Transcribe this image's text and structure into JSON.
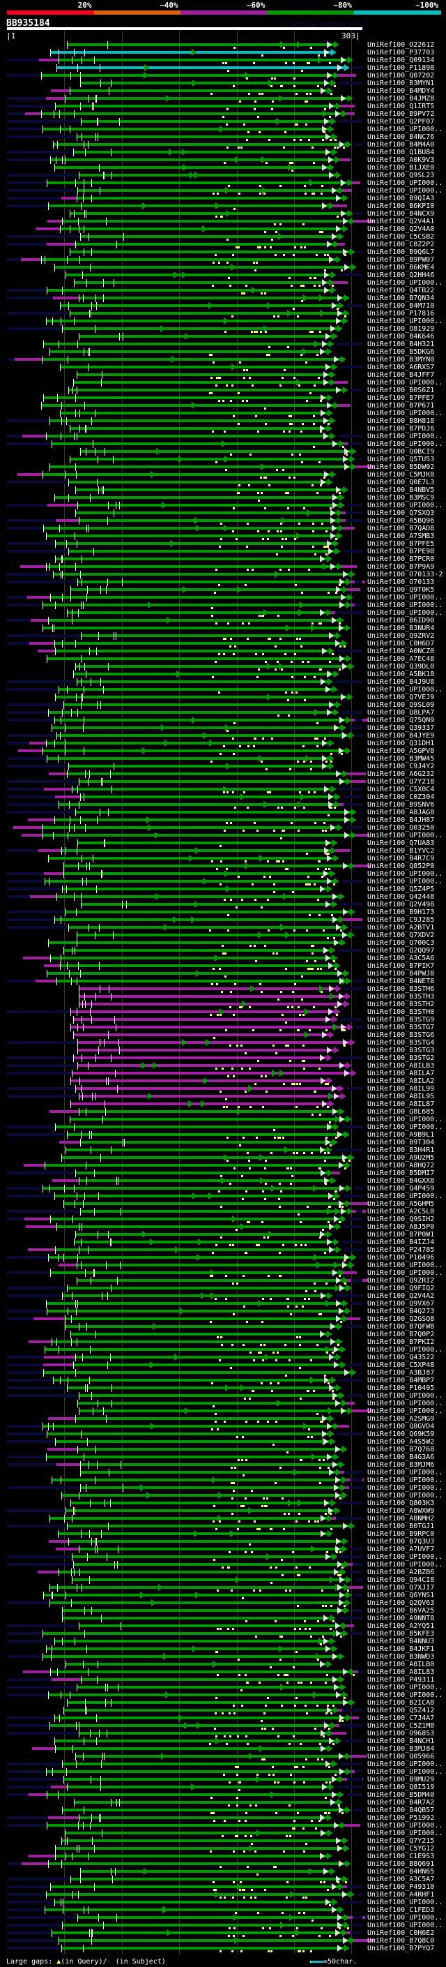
{
  "identity_legend": [
    {
      "label": "20%",
      "color": "#ff0020"
    },
    {
      "label": "~40%",
      "color": "#e06000"
    },
    {
      "label": "~60%",
      "color": "#a020a0"
    },
    {
      "label": "~80%",
      "color": "#009900"
    },
    {
      "label": "~100%",
      "color": "#00c0c0"
    }
  ],
  "query": {
    "title": "BB935184",
    "tool": "AlignView.pm Beta rel.7",
    "start": "|1",
    "end": "303|",
    "length": 303
  },
  "colors": {
    "g": "#009900",
    "c": "#00c0c0",
    "m": "#a020a0",
    "navy": "#0a0a38",
    "gap": "#ffff70"
  },
  "footer": {
    "prefix": "Large gaps: ",
    "query_mark": "▲",
    "query_text": "(in Query)/",
    "subject_mark": "-",
    "subject_text": " (in Subject)",
    "scale_text": "=50char."
  },
  "hits": [
    {
      "name": "UniRef100_O22612",
      "c": "g"
    },
    {
      "name": "UniRef100_P37703",
      "c": "c"
    },
    {
      "name": "UniRef100_Q09134",
      "c": "g"
    },
    {
      "name": "UniRef100_P11898",
      "c": "c"
    },
    {
      "name": "UniRef100_Q07202",
      "c": "g"
    },
    {
      "name": "UniRef100_B3MYN1",
      "c": "g"
    },
    {
      "name": "UniRef100_B4MDY4",
      "c": "g"
    },
    {
      "name": "UniRef100_B4JMZ8",
      "c": "g"
    },
    {
      "name": "UniRef100_Q1IRT5",
      "c": "g"
    },
    {
      "name": "UniRef100_B9PV72",
      "c": "g"
    },
    {
      "name": "UniRef100_Q2PF07",
      "c": "g"
    },
    {
      "name": "UniRef100_UPI000..",
      "c": "g"
    },
    {
      "name": "UniRef100_B4NC76",
      "c": "g"
    },
    {
      "name": "UniRef100_B4M4A0",
      "c": "g"
    },
    {
      "name": "UniRef100_Q1BU84",
      "c": "g"
    },
    {
      "name": "UniRef100_A0K9V3",
      "c": "g"
    },
    {
      "name": "UniRef100_B1JXE0",
      "c": "g"
    },
    {
      "name": "UniRef100_Q9SL23",
      "c": "g"
    },
    {
      "name": "UniRef100_UPI000..",
      "c": "g"
    },
    {
      "name": "UniRef100_UPI000..",
      "c": "g"
    },
    {
      "name": "UniRef100_B9QIA3",
      "c": "g"
    },
    {
      "name": "UniRef100_B6KPI0",
      "c": "g"
    },
    {
      "name": "UniRef100_B4NCX9",
      "c": "g"
    },
    {
      "name": "UniRef100_Q2V4A1",
      "c": "g"
    },
    {
      "name": "UniRef100_Q2V4A0",
      "c": "g"
    },
    {
      "name": "UniRef100_C5CSB2",
      "c": "g"
    },
    {
      "name": "UniRef100_C0Z2P2",
      "c": "g"
    },
    {
      "name": "UniRef100_B9Q6L7",
      "c": "g"
    },
    {
      "name": "UniRef100_B9PW07",
      "c": "g"
    },
    {
      "name": "UniRef100_B6KME4",
      "c": "g"
    },
    {
      "name": "UniRef100_Q2HH46",
      "c": "g"
    },
    {
      "name": "UniRef100_UPI000..",
      "c": "g"
    },
    {
      "name": "UniRef100_Q4TB22",
      "c": "g"
    },
    {
      "name": "UniRef100_B7QN34",
      "c": "g"
    },
    {
      "name": "UniRef100_B4M7I0",
      "c": "g"
    },
    {
      "name": "UniRef100_P17816",
      "c": "g"
    },
    {
      "name": "UniRef100_UPI000..",
      "c": "g"
    },
    {
      "name": "UniRef100_O81929",
      "c": "g"
    },
    {
      "name": "UniRef100_B4K646",
      "c": "g"
    },
    {
      "name": "UniRef100_B4H321",
      "c": "g"
    },
    {
      "name": "UniRef100_B5DKG6",
      "c": "g"
    },
    {
      "name": "UniRef100_B3MYN0",
      "c": "g"
    },
    {
      "name": "UniRef100_A6RXS7",
      "c": "g"
    },
    {
      "name": "UniRef100_B4JFF7",
      "c": "g"
    },
    {
      "name": "UniRef100_UPI000..",
      "c": "g"
    },
    {
      "name": "UniRef100_B0S6Z1",
      "c": "g"
    },
    {
      "name": "UniRef100_B7PFE7",
      "c": "g"
    },
    {
      "name": "UniRef100_B7P671",
      "c": "g"
    },
    {
      "name": "UniRef100_UPI000..",
      "c": "g"
    },
    {
      "name": "UniRef100_B8H818",
      "c": "g"
    },
    {
      "name": "UniRef100_B7PDJ6",
      "c": "g"
    },
    {
      "name": "UniRef100_UPI000..",
      "c": "g"
    },
    {
      "name": "UniRef100_UPI000..",
      "c": "g"
    },
    {
      "name": "UniRef100_Q0BCI9",
      "c": "g"
    },
    {
      "name": "UniRef100_Q5TU53",
      "c": "g"
    },
    {
      "name": "UniRef100_B5DW02",
      "c": "g"
    },
    {
      "name": "UniRef100_C5MJK0",
      "c": "g"
    },
    {
      "name": "UniRef100_Q0E7L3",
      "c": "g"
    },
    {
      "name": "UniRef100_B4NBV5",
      "c": "g"
    },
    {
      "name": "UniRef100_B3MSC9",
      "c": "g"
    },
    {
      "name": "UniRef100_UPI000..",
      "c": "g"
    },
    {
      "name": "UniRef100_Q7SXQ3",
      "c": "g"
    },
    {
      "name": "UniRef100_A5BQ96",
      "c": "g"
    },
    {
      "name": "UniRef100_B7QAD8",
      "c": "g"
    },
    {
      "name": "UniRef100_A7SMB3",
      "c": "g"
    },
    {
      "name": "UniRef100_B7PFE5",
      "c": "g"
    },
    {
      "name": "UniRef100_B7PE98",
      "c": "g"
    },
    {
      "name": "UniRef100_B7PCR0",
      "c": "g"
    },
    {
      "name": "UniRef100_B7P9A9",
      "c": "g"
    },
    {
      "name": "UniRef100_O70133-2",
      "c": "g"
    },
    {
      "name": "UniRef100_O70133",
      "c": "g"
    },
    {
      "name": "UniRef100_Q9T0K5",
      "c": "g"
    },
    {
      "name": "UniRef100_UPI000..",
      "c": "g"
    },
    {
      "name": "UniRef100_UPI000..",
      "c": "g"
    },
    {
      "name": "UniRef100_UPI000..",
      "c": "g"
    },
    {
      "name": "UniRef100_B6ID90",
      "c": "g"
    },
    {
      "name": "UniRef100_B3NUR4",
      "c": "g"
    },
    {
      "name": "UniRef100_Q9ZRV2",
      "c": "g"
    },
    {
      "name": "UniRef100_C0H6D7",
      "c": "g"
    },
    {
      "name": "UniRef100_A0NCZ0",
      "c": "g"
    },
    {
      "name": "UniRef100_A7EC48",
      "c": "g"
    },
    {
      "name": "UniRef100_Q39DL0",
      "c": "g"
    },
    {
      "name": "UniRef100_A5BK18",
      "c": "g"
    },
    {
      "name": "UniRef100_B4J9U8",
      "c": "g"
    },
    {
      "name": "UniRef100_UPI000..",
      "c": "g"
    },
    {
      "name": "UniRef100_Q7VEJ9",
      "c": "g"
    },
    {
      "name": "UniRef100_Q9SL09",
      "c": "g"
    },
    {
      "name": "UniRef100_Q8LPA7",
      "c": "g"
    },
    {
      "name": "UniRef100_Q75QN9",
      "c": "g"
    },
    {
      "name": "UniRef100_Q39337",
      "c": "g"
    },
    {
      "name": "UniRef100_B4JYE9",
      "c": "g"
    },
    {
      "name": "UniRef100_Q31DH1",
      "c": "g"
    },
    {
      "name": "UniRef100_A5GPV8",
      "c": "g"
    },
    {
      "name": "UniRef100_B3MW45",
      "c": "g"
    },
    {
      "name": "UniRef100_C9J4Y2",
      "c": "g"
    },
    {
      "name": "UniRef100_A6G232",
      "c": "g"
    },
    {
      "name": "UniRef100_Q7Y218",
      "c": "g"
    },
    {
      "name": "UniRef100_C5X0C4",
      "c": "g"
    },
    {
      "name": "UniRef100_C0Z304",
      "c": "g"
    },
    {
      "name": "UniRef100_B9SNV6",
      "c": "g"
    },
    {
      "name": "UniRef100_A8JAG8",
      "c": "g"
    },
    {
      "name": "UniRef100_B4JH87",
      "c": "g"
    },
    {
      "name": "UniRef100_Q03250",
      "c": "g"
    },
    {
      "name": "UniRef100_UPI000..",
      "c": "g"
    },
    {
      "name": "UniRef100_Q7UA83",
      "c": "g"
    },
    {
      "name": "UniRef100_B1YVC2",
      "c": "g"
    },
    {
      "name": "UniRef100_B4R7C9",
      "c": "g"
    },
    {
      "name": "UniRef100_Q852P0",
      "c": "g"
    },
    {
      "name": "UniRef100_UPI000..",
      "c": "g"
    },
    {
      "name": "UniRef100_UPI000..",
      "c": "g"
    },
    {
      "name": "UniRef100_Q5Z4P5",
      "c": "g"
    },
    {
      "name": "UniRef100_Q42448",
      "c": "g"
    },
    {
      "name": "UniRef100_Q2V498",
      "c": "g"
    },
    {
      "name": "UniRef100_B9H173",
      "c": "g"
    },
    {
      "name": "UniRef100_C9J285",
      "c": "g"
    },
    {
      "name": "UniRef100_A2BTV1",
      "c": "g"
    },
    {
      "name": "UniRef100_Q7XDV2",
      "c": "g"
    },
    {
      "name": "UniRef100_Q700C3",
      "c": "g"
    },
    {
      "name": "UniRef100_Q2QQ97",
      "c": "g"
    },
    {
      "name": "UniRef100_A3C5A6",
      "c": "g"
    },
    {
      "name": "UniRef100_B7PIK7",
      "c": "g"
    },
    {
      "name": "UniRef100_B4PWJ8",
      "c": "g"
    },
    {
      "name": "UniRef100_B4NET8",
      "c": "g"
    },
    {
      "name": "UniRef100_B3STH6",
      "c": "m"
    },
    {
      "name": "UniRef100_B3STH3",
      "c": "m"
    },
    {
      "name": "UniRef100_B3STH2",
      "c": "m"
    },
    {
      "name": "UniRef100_B3STH0",
      "c": "m"
    },
    {
      "name": "UniRef100_B3STG9",
      "c": "m"
    },
    {
      "name": "UniRef100_B3STG7",
      "c": "m"
    },
    {
      "name": "UniRef100_B3STG6",
      "c": "m"
    },
    {
      "name": "UniRef100_B3STG4",
      "c": "m"
    },
    {
      "name": "UniRef100_B3STG3",
      "c": "m"
    },
    {
      "name": "UniRef100_B3STG2",
      "c": "m"
    },
    {
      "name": "UniRef100_A8ILB3",
      "c": "m"
    },
    {
      "name": "UniRef100_A8ILA7",
      "c": "m"
    },
    {
      "name": "UniRef100_A8ILA2",
      "c": "m"
    },
    {
      "name": "UniRef100_A8IL99",
      "c": "m"
    },
    {
      "name": "UniRef100_A8IL95",
      "c": "m"
    },
    {
      "name": "UniRef100_A8IL87",
      "c": "m"
    },
    {
      "name": "UniRef100_Q8L685",
      "c": "g"
    },
    {
      "name": "UniRef100_UPI000..",
      "c": "g"
    },
    {
      "name": "UniRef100_UPI000..",
      "c": "g"
    },
    {
      "name": "UniRef100_A9B9L1",
      "c": "g"
    },
    {
      "name": "UniRef100_B9T304",
      "c": "g"
    },
    {
      "name": "UniRef100_B3H4R1",
      "c": "g"
    },
    {
      "name": "UniRef100_A9U2M5",
      "c": "g"
    },
    {
      "name": "UniRef100_A8HQ72",
      "c": "g"
    },
    {
      "name": "UniRef100_B5DMI7",
      "c": "g"
    },
    {
      "name": "UniRef100_B4GXX8",
      "c": "g"
    },
    {
      "name": "UniRef100_Q4P459",
      "c": "g"
    },
    {
      "name": "UniRef100_UPI000..",
      "c": "g"
    },
    {
      "name": "UniRef100_A5GHM5",
      "c": "g"
    },
    {
      "name": "UniRef100_A2C5L0",
      "c": "g"
    },
    {
      "name": "UniRef100_Q9SIH2",
      "c": "g"
    },
    {
      "name": "UniRef100_A8J5P0",
      "c": "g"
    },
    {
      "name": "UniRef100_B7P0W1",
      "c": "g"
    },
    {
      "name": "UniRef100_B4IZJ4",
      "c": "g"
    },
    {
      "name": "UniRef100_P24785",
      "c": "g"
    },
    {
      "name": "UniRef100_P10496",
      "c": "g"
    },
    {
      "name": "UniRef100_UPI000..",
      "c": "g"
    },
    {
      "name": "UniRef100_UPI000..",
      "c": "g"
    },
    {
      "name": "UniRef100_Q9ZRI2",
      "c": "g"
    },
    {
      "name": "UniRef100_Q9FIQ2",
      "c": "g"
    },
    {
      "name": "UniRef100_Q2V4A2",
      "c": "g"
    },
    {
      "name": "UniRef100_Q9VX67",
      "c": "g"
    },
    {
      "name": "UniRef100_B4Q273",
      "c": "g"
    },
    {
      "name": "UniRef100_Q2GSQ8",
      "c": "g"
    },
    {
      "name": "UniRef100_B7QFW8",
      "c": "g"
    },
    {
      "name": "UniRef100_B7Q0P2",
      "c": "g"
    },
    {
      "name": "UniRef100_B7PKI2",
      "c": "g"
    },
    {
      "name": "UniRef100_UPI000..",
      "c": "g"
    },
    {
      "name": "UniRef100_Q43522",
      "c": "g"
    },
    {
      "name": "UniRef100_C5XP48",
      "c": "g"
    },
    {
      "name": "UniRef100_A3BJ87",
      "c": "g"
    },
    {
      "name": "UniRef100_B4MBP7",
      "c": "g"
    },
    {
      "name": "UniRef100_P10495",
      "c": "g"
    },
    {
      "name": "UniRef100_UPI000..",
      "c": "g"
    },
    {
      "name": "UniRef100_UPI000..",
      "c": "g"
    },
    {
      "name": "UniRef100_UPI000..",
      "c": "g"
    },
    {
      "name": "UniRef100_A2SMG9",
      "c": "g"
    },
    {
      "name": "UniRef100_Q8GVD4",
      "c": "g"
    },
    {
      "name": "UniRef100_Q69K59",
      "c": "g"
    },
    {
      "name": "UniRef100_A4S5W2",
      "c": "g"
    },
    {
      "name": "UniRef100_B7Q768",
      "c": "g"
    },
    {
      "name": "UniRef100_B4G3A6",
      "c": "g"
    },
    {
      "name": "UniRef100_B3MJM6",
      "c": "g"
    },
    {
      "name": "UniRef100_UPI000..",
      "c": "g"
    },
    {
      "name": "UniRef100_UPI000..",
      "c": "g"
    },
    {
      "name": "UniRef100_UPI000..",
      "c": "g"
    },
    {
      "name": "UniRef100_UPI000..",
      "c": "g"
    },
    {
      "name": "UniRef100_Q803K3",
      "c": "g"
    },
    {
      "name": "UniRef100_A8WXW9",
      "c": "g"
    },
    {
      "name": "UniRef100_A8NMH2",
      "c": "g"
    },
    {
      "name": "UniRef100_B0TGJ1",
      "c": "g"
    },
    {
      "name": "UniRef100_B9RPC0",
      "c": "g"
    },
    {
      "name": "UniRef100_B7Q3U3",
      "c": "g"
    },
    {
      "name": "UniRef100_A7UVF7",
      "c": "g"
    },
    {
      "name": "UniRef100_UPI000..",
      "c": "g"
    },
    {
      "name": "UniRef100_UPI000..",
      "c": "g"
    },
    {
      "name": "UniRef100_A2BZB6",
      "c": "g"
    },
    {
      "name": "UniRef100_Q94CI8",
      "c": "g"
    },
    {
      "name": "UniRef100_Q7XJI7",
      "c": "g"
    },
    {
      "name": "UniRef100_Q6YNS1",
      "c": "g"
    },
    {
      "name": "UniRef100_Q2QV63",
      "c": "g"
    },
    {
      "name": "UniRef100_B6VA25",
      "c": "g"
    },
    {
      "name": "UniRef100_A9NNT8",
      "c": "g"
    },
    {
      "name": "UniRef100_A2YQ51",
      "c": "g"
    },
    {
      "name": "UniRef100_B5KFE3",
      "c": "g"
    },
    {
      "name": "UniRef100_B4NNU3",
      "c": "g"
    },
    {
      "name": "UniRef100_B4JKF1",
      "c": "g"
    },
    {
      "name": "UniRef100_B3NWD3",
      "c": "g"
    },
    {
      "name": "UniRef100_A8ILB0",
      "c": "g"
    },
    {
      "name": "UniRef100_A8IL83",
      "c": "g"
    },
    {
      "name": "UniRef100_P49311",
      "c": "g"
    },
    {
      "name": "UniRef100_UPI000..",
      "c": "g"
    },
    {
      "name": "UniRef100_UPI000..",
      "c": "g"
    },
    {
      "name": "UniRef100_B2ICA8",
      "c": "g"
    },
    {
      "name": "UniRef100_Q5Z412",
      "c": "g"
    },
    {
      "name": "UniRef100_C7J4A7",
      "c": "g"
    },
    {
      "name": "UniRef100_C5Z1M8",
      "c": "g"
    },
    {
      "name": "UniRef100_O96853",
      "c": "g"
    },
    {
      "name": "UniRef100_B4NCH1",
      "c": "g"
    },
    {
      "name": "UniRef100_B3MJ84",
      "c": "g"
    },
    {
      "name": "UniRef100_Q05966",
      "c": "g"
    },
    {
      "name": "UniRef100_UPI000..",
      "c": "g"
    },
    {
      "name": "UniRef100_UPI000..",
      "c": "g"
    },
    {
      "name": "UniRef100_B9MU29",
      "c": "g"
    },
    {
      "name": "UniRef100_Q8I519",
      "c": "g"
    },
    {
      "name": "UniRef100_B5DM40",
      "c": "g"
    },
    {
      "name": "UniRef100_B4R7A2",
      "c": "g"
    },
    {
      "name": "UniRef100_B4QB57",
      "c": "g"
    },
    {
      "name": "UniRef100_P51992",
      "c": "g"
    },
    {
      "name": "UniRef100_UPI000..",
      "c": "g"
    },
    {
      "name": "UniRef100_UPI000..",
      "c": "g"
    },
    {
      "name": "UniRef100_Q7Y215",
      "c": "g"
    },
    {
      "name": "UniRef100_C5YG12",
      "c": "g"
    },
    {
      "name": "UniRef100_C1E9S3",
      "c": "g"
    },
    {
      "name": "UniRef100_B8Q691",
      "c": "g"
    },
    {
      "name": "UniRef100_B4HN65",
      "c": "g"
    },
    {
      "name": "UniRef100_A3C5A7",
      "c": "g"
    },
    {
      "name": "UniRef100_P49310",
      "c": "g"
    },
    {
      "name": "UniRef100_A4RHF1",
      "c": "g"
    },
    {
      "name": "UniRef100_UPI000..",
      "c": "g"
    },
    {
      "name": "UniRef100_C1FED3",
      "c": "g"
    },
    {
      "name": "UniRef100_UPI000..",
      "c": "g"
    },
    {
      "name": "UniRef100_UPI000..",
      "c": "g"
    },
    {
      "name": "UniRef100_C0H6E2",
      "c": "g"
    },
    {
      "name": "UniRef100_B7Q8C0",
      "c": "g"
    },
    {
      "name": "UniRef100_B7PYQ7",
      "c": "g"
    }
  ]
}
